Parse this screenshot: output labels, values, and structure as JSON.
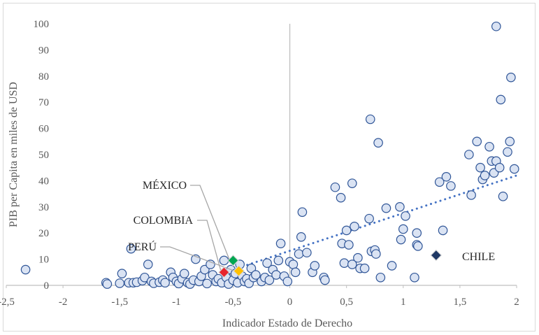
{
  "chart_data": {
    "type": "scatter",
    "xlabel": "Indicador Estado de Derecho",
    "ylabel": "PIB per Capita en miles de USD",
    "xlim": [
      -2.5,
      2
    ],
    "ylim": [
      0,
      100
    ],
    "xticks": [
      "-2,5",
      "-2",
      "-1,5",
      "-1",
      "-0,5",
      "0",
      "0,5",
      "1",
      "1,5",
      "2"
    ],
    "yticks": [
      "0",
      "10",
      "20",
      "30",
      "40",
      "50",
      "60",
      "70",
      "80",
      "90",
      "100"
    ],
    "grid": false,
    "trendline": {
      "style": "dotted",
      "color": "#4472C4",
      "x": [
        -0.5,
        2
      ],
      "y": [
        6,
        42
      ]
    },
    "colors": {
      "marker_fill": "#DAE3F3",
      "marker_edge": "#2F5597",
      "axis": "#bfbfbf",
      "leader": "#a6a6a6"
    },
    "series": [
      {
        "points": [
          [
            -2.33,
            6
          ],
          [
            -1.62,
            1
          ],
          [
            -1.61,
            0.5
          ],
          [
            -1.5,
            0.8
          ],
          [
            -1.48,
            4.5
          ],
          [
            -1.42,
            1
          ],
          [
            -1.4,
            14
          ],
          [
            -1.38,
            1
          ],
          [
            -1.35,
            1.2
          ],
          [
            -1.3,
            1.8
          ],
          [
            -1.28,
            3
          ],
          [
            -1.25,
            8
          ],
          [
            -1.22,
            1.5
          ],
          [
            -1.2,
            0.8
          ],
          [
            -1.15,
            1.2
          ],
          [
            -1.12,
            2
          ],
          [
            -1.1,
            1
          ],
          [
            -1.05,
            5
          ],
          [
            -1.03,
            3
          ],
          [
            -1.0,
            1.5
          ],
          [
            -0.98,
            0.7
          ],
          [
            -0.95,
            2.5
          ],
          [
            -0.93,
            4.5
          ],
          [
            -0.9,
            1
          ],
          [
            -0.88,
            0.5
          ],
          [
            -0.85,
            2
          ],
          [
            -0.83,
            10
          ],
          [
            -0.8,
            1.5
          ],
          [
            -0.78,
            3.5
          ],
          [
            -0.75,
            6
          ],
          [
            -0.73,
            0.7
          ],
          [
            -0.7,
            8
          ],
          [
            -0.68,
            4
          ],
          [
            -0.65,
            1.5
          ],
          [
            -0.63,
            2.5
          ],
          [
            -0.6,
            1
          ],
          [
            -0.58,
            9.5
          ],
          [
            -0.56,
            3
          ],
          [
            -0.54,
            0.5
          ],
          [
            -0.52,
            6
          ],
          [
            -0.5,
            2
          ],
          [
            -0.48,
            4.5
          ],
          [
            -0.46,
            1
          ],
          [
            -0.44,
            8
          ],
          [
            -0.42,
            3.5
          ],
          [
            -0.4,
            1.5
          ],
          [
            -0.38,
            2.5
          ],
          [
            -0.36,
            0.8
          ],
          [
            -0.34,
            6.5
          ],
          [
            -0.32,
            3
          ],
          [
            -0.3,
            4
          ],
          [
            -0.25,
            1.5
          ],
          [
            -0.22,
            3
          ],
          [
            -0.2,
            8.5
          ],
          [
            -0.18,
            2
          ],
          [
            -0.15,
            6
          ],
          [
            -0.12,
            4
          ],
          [
            -0.1,
            9.5
          ],
          [
            -0.08,
            16
          ],
          [
            -0.05,
            3.5
          ],
          [
            -0.02,
            1.5
          ],
          [
            0.0,
            9
          ],
          [
            0.03,
            8
          ],
          [
            0.05,
            5
          ],
          [
            0.08,
            12
          ],
          [
            0.1,
            18.5
          ],
          [
            0.11,
            28
          ],
          [
            0.15,
            12.5
          ],
          [
            0.2,
            5
          ],
          [
            0.22,
            7.5
          ],
          [
            0.3,
            3
          ],
          [
            0.31,
            2
          ],
          [
            0.4,
            37.5
          ],
          [
            0.45,
            33.5
          ],
          [
            0.46,
            16
          ],
          [
            0.48,
            8.5
          ],
          [
            0.5,
            21
          ],
          [
            0.52,
            15.5
          ],
          [
            0.55,
            39
          ],
          [
            0.55,
            8
          ],
          [
            0.57,
            22.5
          ],
          [
            0.6,
            10.5
          ],
          [
            0.62,
            6.5
          ],
          [
            0.66,
            6.5
          ],
          [
            0.7,
            25.5
          ],
          [
            0.71,
            63.5
          ],
          [
            0.72,
            13
          ],
          [
            0.75,
            13.5
          ],
          [
            0.76,
            12
          ],
          [
            0.78,
            54.5
          ],
          [
            0.8,
            3
          ],
          [
            0.85,
            29.5
          ],
          [
            0.9,
            7.5
          ],
          [
            0.97,
            30
          ],
          [
            0.98,
            17.5
          ],
          [
            1.0,
            21.5
          ],
          [
            1.02,
            26.5
          ],
          [
            1.1,
            3
          ],
          [
            1.12,
            20
          ],
          [
            1.12,
            15.5
          ],
          [
            1.13,
            15
          ],
          [
            1.32,
            39.5
          ],
          [
            1.35,
            21
          ],
          [
            1.38,
            41.5
          ],
          [
            1.42,
            38
          ],
          [
            1.58,
            50
          ],
          [
            1.6,
            34.5
          ],
          [
            1.65,
            55
          ],
          [
            1.68,
            45
          ],
          [
            1.7,
            40.5
          ],
          [
            1.72,
            42
          ],
          [
            1.76,
            53
          ],
          [
            1.78,
            47.5
          ],
          [
            1.8,
            43
          ],
          [
            1.82,
            47.5
          ],
          [
            1.82,
            99
          ],
          [
            1.85,
            45
          ],
          [
            1.86,
            71
          ],
          [
            1.88,
            34
          ],
          [
            1.92,
            51
          ],
          [
            1.94,
            55
          ],
          [
            1.95,
            79.5
          ],
          [
            1.98,
            44.5
          ]
        ]
      }
    ],
    "highlights": [
      {
        "label": "MÉXICO",
        "x": -0.5,
        "y": 9.5,
        "color": "#00A651"
      },
      {
        "label": "COLOMBIA",
        "x": -0.58,
        "y": 5,
        "color": "#E8242C"
      },
      {
        "label": "PERÚ",
        "x": -0.45,
        "y": 5.5,
        "color": "#FFC000"
      },
      {
        "label": "CHILE",
        "x": 1.29,
        "y": 11.5,
        "color": "#1F3864"
      }
    ]
  }
}
